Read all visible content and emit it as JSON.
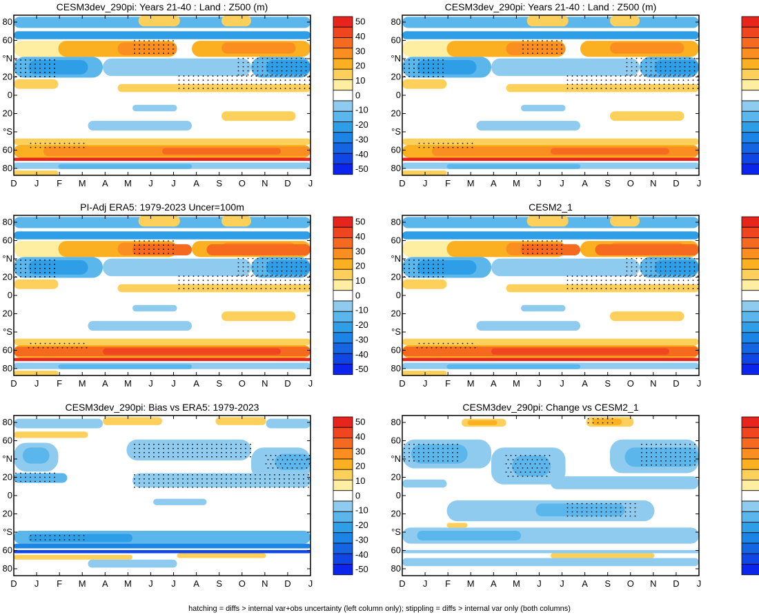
{
  "caption": "hatching = diffs > internal var+obs uncertainty (left column only); stippling = diffs > internal var only (both columns)",
  "colorbar": {
    "levels": [
      "50",
      "40",
      "30",
      "20",
      "10",
      "0",
      "-10",
      "-20",
      "-30",
      "-40",
      "-50"
    ],
    "colors": [
      "#e8251d",
      "#f0461f",
      "#f66a1f",
      "#fa8e20",
      "#fbb022",
      "#fcd05a",
      "#fdeea1",
      "#ffffff",
      "#8ecbee",
      "#5bb6ec",
      "#2e9fe7",
      "#1b84e4",
      "#1565e3",
      "#1146e6",
      "#0b25ea"
    ]
  },
  "chart_data": [
    {
      "type": "heatmap",
      "title": "CESM3dev_290pi: Years 21-40 : Land : Z500 (m)",
      "xticks": [
        "D",
        "J",
        "F",
        "M",
        "A",
        "M",
        "J",
        "J",
        "A",
        "S",
        "O",
        "N",
        "D",
        "J"
      ],
      "yticks": [
        "80",
        "60",
        "°N",
        "20",
        "0",
        "20",
        "°S",
        "60",
        "80"
      ],
      "variant": "mean"
    },
    {
      "type": "heatmap",
      "title": "CESM3dev_290pi: Years 21-40 : Land : Z500 (m)",
      "xticks": [
        "D",
        "J",
        "F",
        "M",
        "A",
        "M",
        "J",
        "J",
        "A",
        "S",
        "O",
        "N",
        "D",
        "J"
      ],
      "yticks": [
        "80",
        "60",
        "°N",
        "20",
        "0",
        "20",
        "°S",
        "60",
        "80"
      ],
      "variant": "mean"
    },
    {
      "type": "heatmap",
      "title": "PI-Adj ERA5: 1979-2023 Uncer=100m",
      "xticks": [
        "D",
        "J",
        "F",
        "M",
        "A",
        "M",
        "J",
        "J",
        "A",
        "S",
        "O",
        "N",
        "D",
        "J"
      ],
      "yticks": [
        "80",
        "60",
        "°N",
        "20",
        "0",
        "20",
        "°S",
        "60",
        "80"
      ],
      "variant": "mean"
    },
    {
      "type": "heatmap",
      "title": "CESM2_1",
      "xticks": [
        "D",
        "J",
        "F",
        "M",
        "A",
        "M",
        "J",
        "J",
        "A",
        "S",
        "O",
        "N",
        "D",
        "J"
      ],
      "yticks": [
        "80",
        "60",
        "°N",
        "20",
        "0",
        "20",
        "°S",
        "60",
        "80"
      ],
      "variant": "mean"
    },
    {
      "type": "heatmap",
      "title": "CESM3dev_290pi: Bias vs ERA5: 1979-2023",
      "xticks": [
        "D",
        "J",
        "F",
        "M",
        "A",
        "M",
        "J",
        "J",
        "A",
        "S",
        "O",
        "N",
        "D",
        "J"
      ],
      "yticks": [
        "80",
        "60",
        "°N",
        "20",
        "0",
        "20",
        "°S",
        "60",
        "80"
      ],
      "variant": "bias"
    },
    {
      "type": "heatmap",
      "title": "CESM3dev_290pi: Change vs CESM2_1",
      "xticks": [
        "D",
        "J",
        "F",
        "M",
        "A",
        "M",
        "J",
        "J",
        "A",
        "S",
        "O",
        "N",
        "D",
        "J"
      ],
      "yticks": [
        "80",
        "60",
        "°N",
        "20",
        "0",
        "20",
        "°S",
        "60",
        "80"
      ],
      "variant": "change"
    }
  ]
}
